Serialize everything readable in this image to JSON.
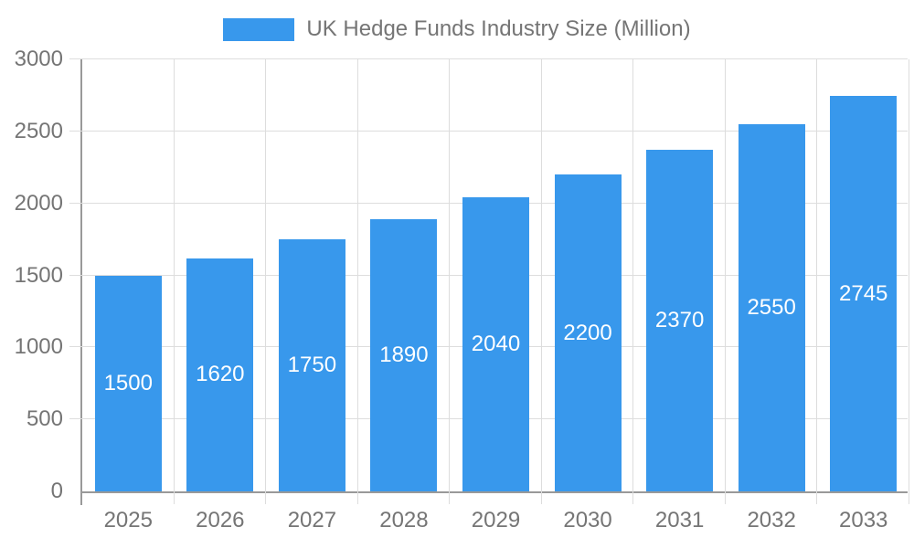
{
  "legend": {
    "label": "UK Hedge Funds Industry Size (Million)",
    "position": "top",
    "swatch_color": "#3898EC"
  },
  "chart_data": {
    "type": "bar",
    "title": "UK Hedge Funds Industry Size (Million)",
    "categories": [
      "2025",
      "2026",
      "2027",
      "2028",
      "2029",
      "2030",
      "2031",
      "2032",
      "2033"
    ],
    "values": [
      1500,
      1620,
      1750,
      1890,
      2040,
      2200,
      2370,
      2550,
      2745
    ],
    "series_name": "UK Hedge Funds Industry Size (Million)",
    "xlabel": "",
    "ylabel": "",
    "ylim": [
      0,
      3000
    ],
    "yticks": [
      0,
      500,
      1000,
      1500,
      2000,
      2500,
      3000
    ],
    "ytick_labels": [
      "0",
      "500",
      "1000",
      "1500",
      "2000",
      "2500",
      "3000"
    ],
    "grid": true,
    "legend_position": "top",
    "bar_color": "#3898EC",
    "bar_label_color": "#ffffff",
    "axis_color": "#999999",
    "grid_color": "#dddddd",
    "tick_label_color": "#757575",
    "background_color": "#ffffff"
  }
}
